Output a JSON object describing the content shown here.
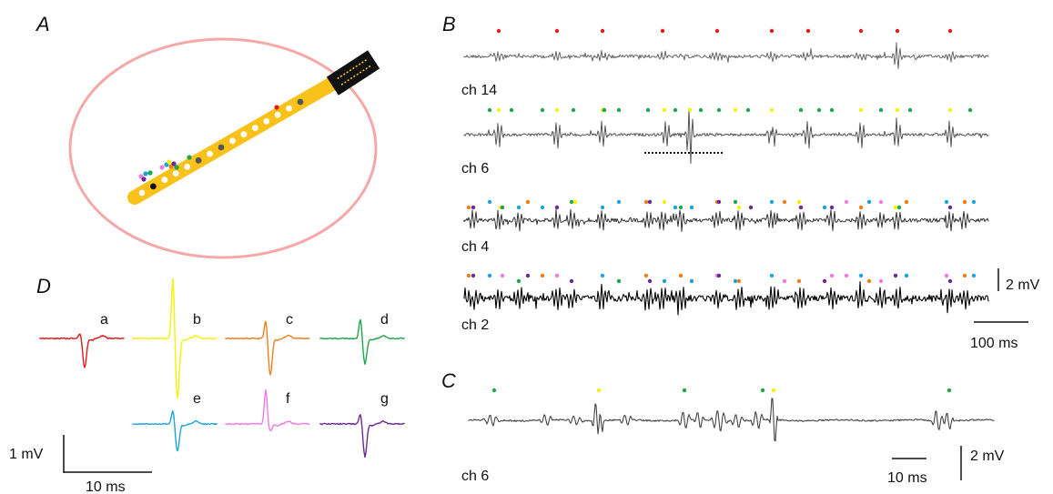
{
  "panels": {
    "a": "A",
    "b": "B",
    "c": "C",
    "d": "D"
  },
  "channels": [
    "ch 14",
    "ch 6",
    "ch 4",
    "ch 2"
  ],
  "panel_c_channel": "ch 6",
  "scale_bars": {
    "b_voltage": "2 mV",
    "b_time": "100 ms",
    "c_voltage": "2 mV",
    "c_time": "10 ms",
    "d_voltage": "1 mV",
    "d_time": "10 ms"
  },
  "units": [
    {
      "letter": "a",
      "color": "#e31a1c"
    },
    {
      "letter": "b",
      "color": "#f2f20a"
    },
    {
      "letter": "c",
      "color": "#f07f1b"
    },
    {
      "letter": "d",
      "color": "#1fa64b"
    },
    {
      "letter": "e",
      "color": "#1ba4dc"
    },
    {
      "letter": "f",
      "color": "#f07ce0"
    },
    {
      "letter": "g",
      "color": "#6a2a96"
    }
  ],
  "colors": {
    "probe": "#f8c21a",
    "ellipse": "#f4a0a0",
    "trace": "#555555",
    "trace_dark": "#111111"
  }
}
